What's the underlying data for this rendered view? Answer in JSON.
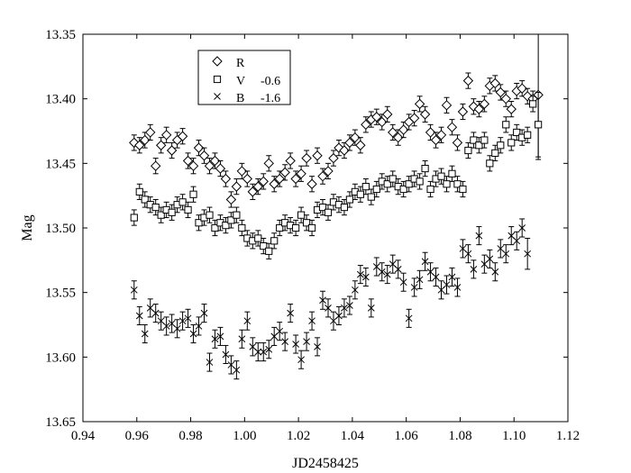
{
  "chart_data": {
    "type": "scatter",
    "title": "",
    "xlabel": "JD2458425",
    "ylabel": "Mag",
    "xlim": [
      0.94,
      1.12
    ],
    "ylim": [
      13.65,
      13.35
    ],
    "y_inverted": true,
    "grid": false,
    "legend_position": "top-left",
    "x_ticks": [
      "0.94",
      "0.96",
      "0.98",
      "1.00",
      "1.02",
      "1.04",
      "1.06",
      "1.08",
      "1.10",
      "1.12"
    ],
    "y_ticks": [
      "13.35",
      "13.40",
      "13.45",
      "13.50",
      "13.55",
      "13.60",
      "13.65"
    ],
    "series": [
      {
        "name": "R",
        "offset_label": "",
        "marker": "diamond",
        "x": [
          0.959,
          0.961,
          0.963,
          0.965,
          0.967,
          0.969,
          0.971,
          0.973,
          0.975,
          0.977,
          0.979,
          0.981,
          0.983,
          0.985,
          0.987,
          0.989,
          0.991,
          0.993,
          0.995,
          0.997,
          0.999,
          1.001,
          1.003,
          1.005,
          1.007,
          1.009,
          1.011,
          1.013,
          1.015,
          1.017,
          1.019,
          1.021,
          1.023,
          1.025,
          1.027,
          1.029,
          1.031,
          1.033,
          1.035,
          1.037,
          1.039,
          1.041,
          1.043,
          1.045,
          1.047,
          1.049,
          1.051,
          1.053,
          1.055,
          1.057,
          1.059,
          1.061,
          1.063,
          1.065,
          1.067,
          1.069,
          1.071,
          1.073,
          1.075,
          1.077,
          1.079,
          1.081,
          1.083,
          1.085,
          1.087,
          1.089,
          1.091,
          1.093,
          1.095,
          1.097,
          1.099,
          1.101,
          1.103,
          1.105,
          1.107,
          1.109
        ],
        "y": [
          13.434,
          13.436,
          13.432,
          13.426,
          13.452,
          13.436,
          13.428,
          13.44,
          13.432,
          13.429,
          13.448,
          13.452,
          13.438,
          13.444,
          13.452,
          13.448,
          13.454,
          13.462,
          13.478,
          13.468,
          13.456,
          13.462,
          13.472,
          13.468,
          13.464,
          13.45,
          13.466,
          13.462,
          13.457,
          13.448,
          13.462,
          13.458,
          13.446,
          13.466,
          13.444,
          13.46,
          13.456,
          13.446,
          13.438,
          13.44,
          13.434,
          13.43,
          13.436,
          13.42,
          13.416,
          13.414,
          13.418,
          13.412,
          13.426,
          13.43,
          13.424,
          13.418,
          13.415,
          13.404,
          13.412,
          13.426,
          13.432,
          13.428,
          13.405,
          13.422,
          13.434,
          13.41,
          13.386,
          13.406,
          13.408,
          13.404,
          13.39,
          13.388,
          13.395,
          13.4,
          13.408,
          13.394,
          13.392,
          13.398,
          13.4,
          13.397
        ],
        "err": [
          0.006,
          0.006,
          0.006,
          0.006,
          0.006,
          0.006,
          0.006,
          0.006,
          0.006,
          0.006,
          0.006,
          0.006,
          0.006,
          0.006,
          0.006,
          0.006,
          0.006,
          0.006,
          0.006,
          0.006,
          0.006,
          0.006,
          0.006,
          0.006,
          0.006,
          0.006,
          0.006,
          0.006,
          0.006,
          0.006,
          0.006,
          0.006,
          0.006,
          0.006,
          0.006,
          0.006,
          0.006,
          0.006,
          0.006,
          0.006,
          0.006,
          0.006,
          0.006,
          0.006,
          0.006,
          0.006,
          0.006,
          0.006,
          0.006,
          0.006,
          0.006,
          0.006,
          0.006,
          0.006,
          0.006,
          0.006,
          0.006,
          0.006,
          0.006,
          0.006,
          0.006,
          0.006,
          0.006,
          0.006,
          0.006,
          0.006,
          0.006,
          0.006,
          0.006,
          0.006,
          0.006,
          0.006,
          0.006,
          0.006,
          0.006,
          0.05
        ]
      },
      {
        "name": "V",
        "offset_label": "-0.6",
        "marker": "square",
        "x": [
          0.959,
          0.961,
          0.963,
          0.965,
          0.967,
          0.969,
          0.971,
          0.973,
          0.975,
          0.977,
          0.979,
          0.981,
          0.983,
          0.985,
          0.987,
          0.989,
          0.991,
          0.993,
          0.995,
          0.997,
          0.999,
          1.001,
          1.003,
          1.005,
          1.007,
          1.009,
          1.011,
          1.013,
          1.015,
          1.017,
          1.019,
          1.021,
          1.023,
          1.025,
          1.027,
          1.029,
          1.031,
          1.033,
          1.035,
          1.037,
          1.039,
          1.041,
          1.043,
          1.045,
          1.047,
          1.049,
          1.051,
          1.053,
          1.055,
          1.057,
          1.059,
          1.061,
          1.063,
          1.065,
          1.067,
          1.069,
          1.071,
          1.073,
          1.075,
          1.077,
          1.079,
          1.081,
          1.083,
          1.085,
          1.087,
          1.089,
          1.091,
          1.093,
          1.095,
          1.097,
          1.099,
          1.101,
          1.103,
          1.105,
          1.107,
          1.109
        ],
        "y": [
          13.492,
          13.472,
          13.478,
          13.482,
          13.484,
          13.49,
          13.486,
          13.488,
          13.482,
          13.48,
          13.486,
          13.474,
          13.496,
          13.492,
          13.49,
          13.5,
          13.496,
          13.498,
          13.494,
          13.49,
          13.5,
          13.508,
          13.51,
          13.508,
          13.514,
          13.518,
          13.51,
          13.5,
          13.496,
          13.498,
          13.5,
          13.49,
          13.496,
          13.5,
          13.486,
          13.484,
          13.488,
          13.48,
          13.482,
          13.484,
          13.478,
          13.472,
          13.474,
          13.468,
          13.476,
          13.47,
          13.464,
          13.466,
          13.462,
          13.468,
          13.47,
          13.466,
          13.462,
          13.464,
          13.454,
          13.47,
          13.462,
          13.46,
          13.466,
          13.458,
          13.466,
          13.47,
          13.44,
          13.432,
          13.436,
          13.432,
          13.45,
          13.442,
          13.436,
          13.42,
          13.434,
          13.426,
          13.43,
          13.428,
          13.404,
          13.42
        ],
        "err": [
          0.006,
          0.006,
          0.006,
          0.006,
          0.006,
          0.006,
          0.006,
          0.006,
          0.006,
          0.006,
          0.006,
          0.006,
          0.006,
          0.006,
          0.006,
          0.006,
          0.006,
          0.006,
          0.006,
          0.006,
          0.006,
          0.006,
          0.006,
          0.006,
          0.006,
          0.006,
          0.006,
          0.006,
          0.006,
          0.006,
          0.006,
          0.006,
          0.006,
          0.006,
          0.006,
          0.006,
          0.006,
          0.006,
          0.006,
          0.006,
          0.006,
          0.006,
          0.006,
          0.006,
          0.006,
          0.006,
          0.006,
          0.006,
          0.006,
          0.006,
          0.006,
          0.006,
          0.006,
          0.006,
          0.006,
          0.006,
          0.006,
          0.006,
          0.006,
          0.006,
          0.006,
          0.006,
          0.006,
          0.006,
          0.006,
          0.006,
          0.006,
          0.006,
          0.006,
          0.006,
          0.006,
          0.006,
          0.006,
          0.006,
          0.006,
          0.025
        ]
      },
      {
        "name": "B",
        "offset_label": "-1.6",
        "marker": "x",
        "x": [
          0.959,
          0.961,
          0.963,
          0.965,
          0.967,
          0.969,
          0.971,
          0.973,
          0.975,
          0.977,
          0.979,
          0.981,
          0.983,
          0.985,
          0.987,
          0.989,
          0.991,
          0.993,
          0.995,
          0.997,
          0.999,
          1.001,
          1.003,
          1.005,
          1.007,
          1.009,
          1.011,
          1.013,
          1.015,
          1.017,
          1.019,
          1.021,
          1.023,
          1.025,
          1.027,
          1.029,
          1.031,
          1.033,
          1.035,
          1.037,
          1.039,
          1.041,
          1.043,
          1.045,
          1.047,
          1.049,
          1.051,
          1.053,
          1.055,
          1.057,
          1.059,
          1.061,
          1.063,
          1.065,
          1.067,
          1.069,
          1.071,
          1.073,
          1.075,
          1.077,
          1.079,
          1.081,
          1.083,
          1.085,
          1.087,
          1.089,
          1.091,
          1.093,
          1.095,
          1.097,
          1.099,
          1.101,
          1.103,
          1.105
        ],
        "y": [
          13.548,
          13.568,
          13.582,
          13.562,
          13.566,
          13.572,
          13.576,
          13.574,
          13.578,
          13.572,
          13.57,
          13.582,
          13.576,
          13.566,
          13.604,
          13.586,
          13.584,
          13.598,
          13.606,
          13.61,
          13.586,
          13.572,
          13.592,
          13.596,
          13.596,
          13.594,
          13.584,
          13.58,
          13.588,
          13.566,
          13.59,
          13.602,
          13.588,
          13.572,
          13.592,
          13.556,
          13.562,
          13.572,
          13.568,
          13.562,
          13.56,
          13.548,
          13.536,
          13.538,
          13.562,
          13.53,
          13.534,
          13.536,
          13.528,
          13.532,
          13.542,
          13.57,
          13.546,
          13.54,
          13.526,
          13.534,
          13.538,
          13.548,
          13.544,
          13.538,
          13.546,
          13.516,
          13.52,
          13.532,
          13.506,
          13.528,
          13.524,
          13.534,
          13.516,
          13.52,
          13.506,
          13.51,
          13.5,
          13.52
        ],
        "err": [
          0.007,
          0.007,
          0.007,
          0.007,
          0.007,
          0.007,
          0.007,
          0.007,
          0.007,
          0.007,
          0.007,
          0.007,
          0.007,
          0.007,
          0.007,
          0.007,
          0.007,
          0.007,
          0.007,
          0.007,
          0.007,
          0.007,
          0.007,
          0.007,
          0.007,
          0.007,
          0.007,
          0.007,
          0.007,
          0.007,
          0.007,
          0.007,
          0.007,
          0.007,
          0.007,
          0.007,
          0.007,
          0.007,
          0.007,
          0.007,
          0.007,
          0.007,
          0.007,
          0.007,
          0.007,
          0.007,
          0.007,
          0.007,
          0.007,
          0.007,
          0.007,
          0.007,
          0.007,
          0.007,
          0.007,
          0.007,
          0.007,
          0.007,
          0.007,
          0.007,
          0.007,
          0.007,
          0.007,
          0.007,
          0.007,
          0.007,
          0.007,
          0.007,
          0.007,
          0.007,
          0.007,
          0.007,
          0.007,
          0.012
        ]
      }
    ]
  }
}
